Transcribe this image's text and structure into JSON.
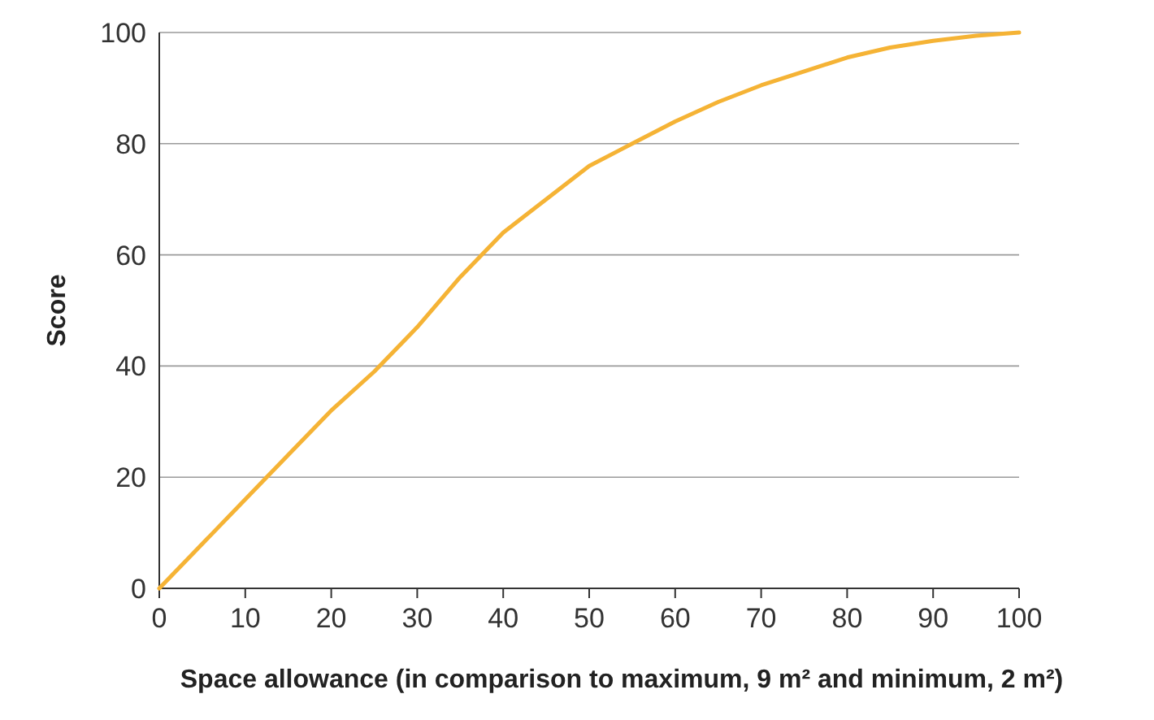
{
  "chart_data": {
    "type": "line",
    "xlabel": "Space allowance (in comparison to maximum, 9 m² and minimum, 2 m²)",
    "ylabel": "Score",
    "x": [
      0,
      5,
      10,
      15,
      20,
      25,
      30,
      35,
      40,
      45,
      50,
      55,
      60,
      65,
      70,
      75,
      80,
      85,
      90,
      95,
      100
    ],
    "series": [
      {
        "color": "#f5b335",
        "values": [
          0,
          8,
          16,
          24,
          32,
          39,
          47,
          56,
          64,
          70,
          76,
          80,
          84,
          87.5,
          90.5,
          93,
          95.5,
          97.3,
          98.5,
          99.4,
          100
        ]
      }
    ],
    "xlim": [
      0,
      100
    ],
    "ylim": [
      0,
      100
    ],
    "xticks": [
      0,
      10,
      20,
      30,
      40,
      50,
      60,
      70,
      80,
      90,
      100
    ],
    "yticks": [
      0,
      20,
      40,
      60,
      80,
      100
    ],
    "grid": "y",
    "marker": "none",
    "line_style": "solid"
  }
}
